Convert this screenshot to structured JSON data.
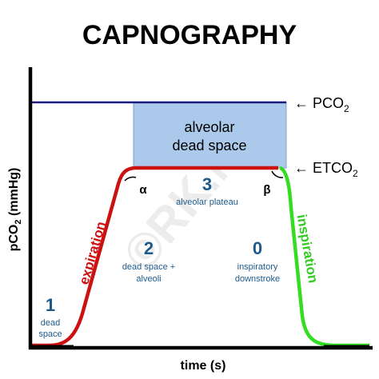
{
  "title": "CAPNOGRAPHY",
  "watermark": "©RK.MD",
  "y_axis": {
    "label": "pCO",
    "sub": "2",
    "unit": " (mmHg)"
  },
  "x_axis": {
    "label": "time (s)"
  },
  "pco2": {
    "label": "← PCO",
    "sub": "2"
  },
  "etco2": {
    "label": "← ETCO",
    "sub": "2"
  },
  "box": {
    "lines": [
      "alveolar",
      "dead space"
    ]
  },
  "angles": {
    "alpha": "α",
    "beta": "β"
  },
  "phases": [
    {
      "number": "1",
      "lines": [
        "dead",
        "space"
      ]
    },
    {
      "number": "2",
      "lines": [
        "dead space +",
        "alveoli"
      ]
    },
    {
      "number": "3",
      "lines": [
        "alveolar plateau"
      ]
    },
    {
      "number": "0",
      "lines": [
        "inspiratory",
        "downstroke"
      ]
    }
  ],
  "curve": {
    "expiration": "expiration",
    "inspiration": "inspiration"
  }
}
